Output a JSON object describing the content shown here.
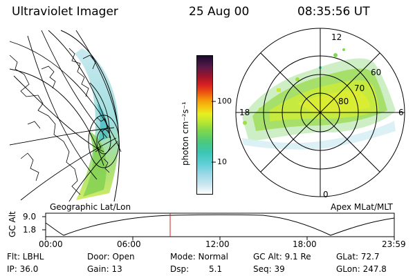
{
  "header": {
    "instrument": "Ultraviolet Imager",
    "date": "25 Aug 00",
    "time": "08:35:56 UT"
  },
  "geo_panel": {
    "label": "Geographic Lat/Lon"
  },
  "polar_panel": {
    "label": "Apex MLat/MLT",
    "mlt_labels": {
      "top": "12",
      "left": "18",
      "right": "6",
      "bottom": "0"
    },
    "lat_labels": [
      "60",
      "70",
      "80"
    ]
  },
  "colorbar": {
    "unit_label": "photon cm⁻²s⁻¹",
    "ticks": [
      "100",
      "10"
    ],
    "colors": [
      "#ffffff",
      "#cfe8f0",
      "#9fd8e8",
      "#5ecfd6",
      "#3bc6b4",
      "#4cc97a",
      "#80d84a",
      "#b9e630",
      "#e8ee20",
      "#f5c410",
      "#f59a0a",
      "#ee5a10",
      "#d82020",
      "#a0142c",
      "#581a48",
      "#1a0a30"
    ]
  },
  "altitude_strip": {
    "axis_label": "GC Alt",
    "y_ticks": [
      "9.0",
      "1.8"
    ],
    "x_ticks": [
      "00:00",
      "06:00",
      "12:00",
      "18:00",
      "23:59"
    ],
    "marker_time_hours": 8.6
  },
  "status": {
    "row1": {
      "flt": "Flt: LBHL",
      "door": "Door: Open",
      "mode": "Mode: Normal",
      "gc_alt": "GC Alt: 9.1 Re",
      "glat": "GLat:  72.7"
    },
    "row2": {
      "ip": "IP: 36.0",
      "gain": "Gain: 13",
      "dsp_label": "Dsp:",
      "dsp_value": "5.1",
      "seq": "Seq: 39",
      "glon": "GLon: 247.8"
    }
  }
}
